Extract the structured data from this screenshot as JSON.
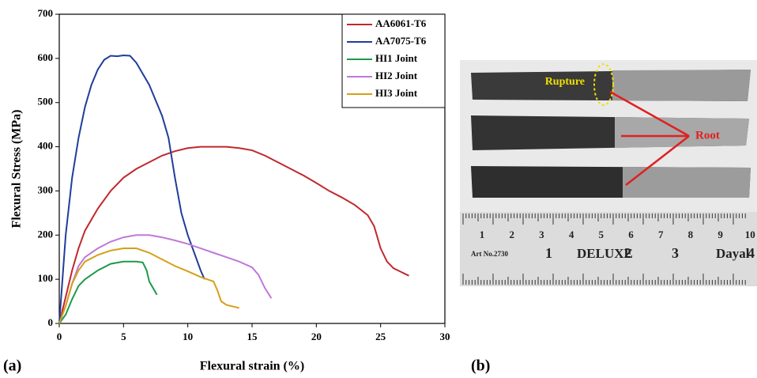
{
  "chart_data": {
    "type": "line",
    "xlabel": "Flexural strain (%)",
    "ylabel": "Flexural Stress (MPa)",
    "xlim": [
      0,
      30
    ],
    "xticks": [
      0,
      5,
      10,
      15,
      20,
      25,
      30
    ],
    "ylim": [
      0,
      700
    ],
    "yticks": [
      0,
      100,
      200,
      300,
      400,
      500,
      600,
      700
    ],
    "grid": false,
    "legend": "upper right",
    "series": [
      {
        "name": "AA6061-T6",
        "color": "#c0282d",
        "x": [
          0,
          0.5,
          1,
          1.5,
          2,
          3,
          4,
          5,
          6,
          7,
          8,
          9,
          10,
          11,
          12,
          13,
          14,
          15,
          16,
          17,
          18,
          19,
          20,
          21,
          22,
          23,
          24,
          24.5,
          25,
          25.5,
          26,
          27.2
        ],
        "values": [
          0,
          60,
          120,
          170,
          210,
          260,
          300,
          330,
          350,
          365,
          380,
          390,
          397,
          400,
          400,
          400,
          397,
          392,
          380,
          365,
          350,
          335,
          318,
          300,
          285,
          268,
          245,
          220,
          170,
          140,
          125,
          108
        ]
      },
      {
        "name": "AA7075-T6",
        "color": "#1f3e9a",
        "x": [
          0,
          0.5,
          1,
          1.5,
          2,
          2.5,
          3,
          3.5,
          4,
          4.5,
          5,
          5.5,
          6,
          7,
          8,
          8.5,
          9,
          9.5,
          10,
          10.5,
          11,
          11.3
        ],
        "values": [
          0,
          200,
          330,
          420,
          490,
          540,
          575,
          597,
          606,
          605,
          607,
          606,
          590,
          540,
          470,
          420,
          330,
          250,
          200,
          160,
          120,
          100
        ]
      },
      {
        "name": "HI1 Joint",
        "color": "#1e9a4a",
        "x": [
          0,
          0.5,
          1,
          1.5,
          2,
          3,
          4,
          5,
          6,
          6.5,
          6.8,
          7,
          7.3,
          7.6
        ],
        "values": [
          0,
          20,
          55,
          85,
          100,
          120,
          135,
          140,
          140,
          138,
          120,
          95,
          80,
          65
        ]
      },
      {
        "name": "HI2 Joint",
        "color": "#c078d8",
        "x": [
          0,
          0.5,
          1,
          1.5,
          2,
          3,
          4,
          5,
          6,
          7,
          8,
          9,
          10,
          11,
          12,
          13,
          14,
          15,
          15.5,
          16,
          16.5
        ],
        "values": [
          0,
          40,
          90,
          130,
          150,
          170,
          185,
          195,
          200,
          200,
          195,
          188,
          180,
          170,
          160,
          150,
          140,
          127,
          110,
          80,
          57
        ]
      },
      {
        "name": "HI3 Joint",
        "color": "#d4a017",
        "x": [
          0,
          0.5,
          1,
          1.5,
          2,
          3,
          4,
          5,
          6,
          7,
          8,
          9,
          10,
          11,
          12,
          12.3,
          12.6,
          13,
          14
        ],
        "values": [
          0,
          40,
          90,
          120,
          140,
          155,
          165,
          170,
          170,
          160,
          145,
          130,
          118,
          105,
          95,
          75,
          50,
          42,
          35
        ]
      }
    ]
  },
  "panel_labels": [
    "(a)",
    "(b)"
  ],
  "photo": {
    "labels": [
      "Rupture",
      "Root"
    ],
    "ruler_numbers": [
      "1",
      "2",
      "3",
      "4",
      "5",
      "6",
      "7",
      "8",
      "9",
      "10"
    ],
    "ruler_texts": [
      "Art No.2730",
      "1",
      "DELUXE",
      "2",
      "3",
      "Dayal",
      "4"
    ]
  }
}
